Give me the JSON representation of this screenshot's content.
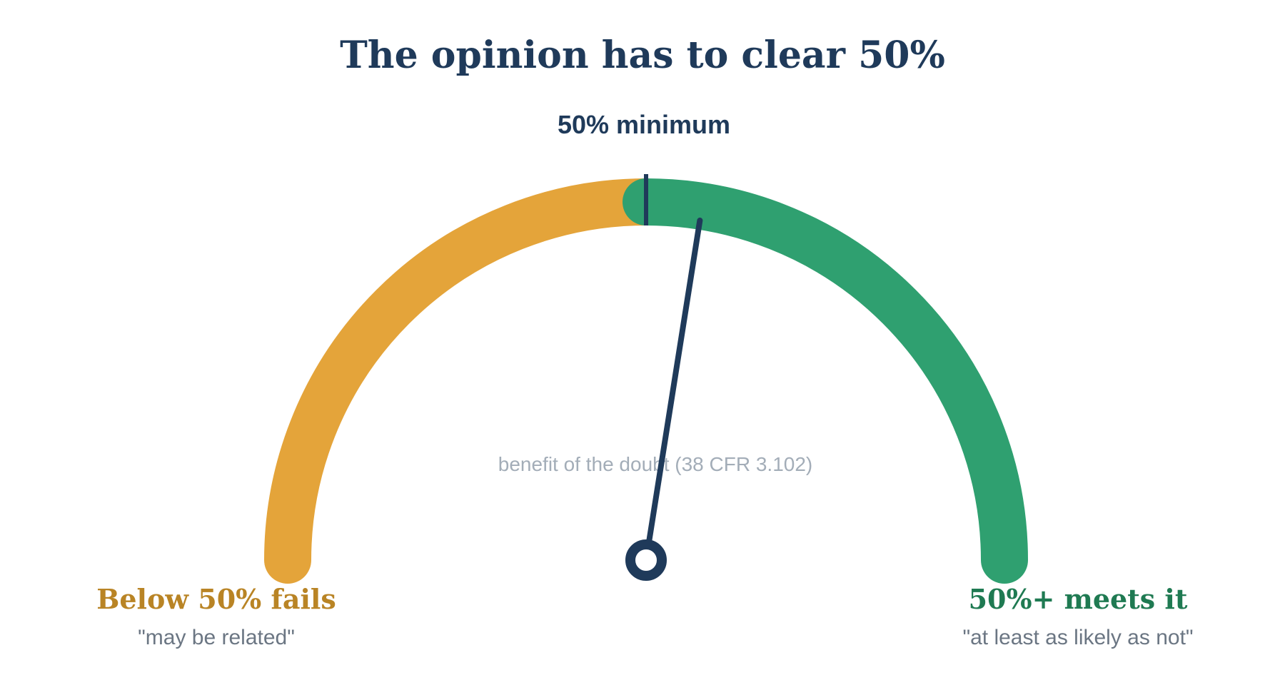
{
  "title": "The opinion has to clear 50%",
  "threshold": {
    "label": "50% minimum",
    "value_percent": 50
  },
  "needle": {
    "value_percent": 55
  },
  "center_note": "benefit of the doubt (38 CFR 3.102)",
  "zones": {
    "below": {
      "heading": "Below 50% fails",
      "quote": "\"may be related\"",
      "color": "#E4A43A",
      "heading_color": "#B98425"
    },
    "above": {
      "heading": "50%+ meets it",
      "quote": "\"at least as likely as not\"",
      "color": "#2FA070",
      "heading_color": "#1F7A52"
    }
  },
  "colors": {
    "navy": "#1F3A5A",
    "gray_text": "#6B7683",
    "light_gray_text": "#A3ADB8"
  }
}
